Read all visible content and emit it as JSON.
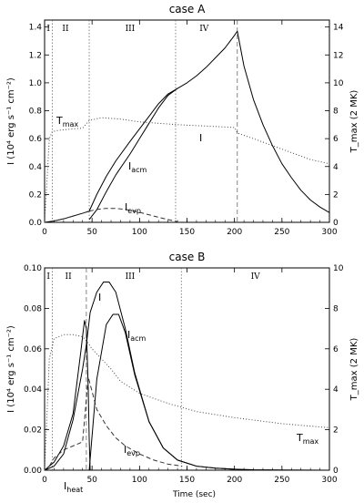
{
  "chart_data": [
    {
      "type": "line",
      "title": "case A",
      "xlabel": "",
      "ylabel": "I (10⁴ erg s⁻¹ cm⁻²)",
      "y2label": "T_max (2 MK)",
      "xlim": [
        0,
        300
      ],
      "ylim": [
        0,
        1.45
      ],
      "y2lim": [
        0,
        14.5
      ],
      "xticks": [
        0,
        50,
        100,
        150,
        200,
        250,
        300
      ],
      "yticks": [
        0.0,
        0.2,
        0.4,
        0.6,
        0.8,
        1.0,
        1.2,
        1.4
      ],
      "y2ticks": [
        0,
        2,
        4,
        6,
        8,
        10,
        12,
        14
      ],
      "grid": false,
      "phases": [
        {
          "label": "I",
          "x": 4
        },
        {
          "label": "II",
          "x": 22
        },
        {
          "label": "III",
          "x": 90
        },
        {
          "label": "IV",
          "x": 168
        }
      ],
      "phase_boundaries": [
        8,
        47,
        138,
        203
      ],
      "series": [
        {
          "name": "I",
          "style": "solid",
          "axis": "left",
          "x": [
            0,
            10,
            20,
            30,
            40,
            47,
            55,
            65,
            75,
            90,
            100,
            110,
            120,
            130,
            140,
            150,
            160,
            170,
            180,
            190,
            200,
            203,
            210,
            220,
            230,
            240,
            250,
            260,
            270,
            280,
            290,
            300
          ],
          "y": [
            0,
            0.01,
            0.025,
            0.045,
            0.065,
            0.08,
            0.2,
            0.33,
            0.44,
            0.58,
            0.67,
            0.76,
            0.85,
            0.92,
            0.96,
            1.0,
            1.05,
            1.11,
            1.18,
            1.25,
            1.34,
            1.37,
            1.12,
            0.88,
            0.7,
            0.55,
            0.42,
            0.32,
            0.23,
            0.16,
            0.11,
            0.07
          ]
        },
        {
          "name": "I_acm",
          "style": "solid",
          "axis": "left",
          "x": [
            47,
            55,
            65,
            75,
            90,
            100,
            110,
            120,
            130,
            140
          ],
          "y": [
            0.02,
            0.09,
            0.22,
            0.34,
            0.49,
            0.6,
            0.71,
            0.82,
            0.91,
            0.96
          ]
        },
        {
          "name": "I_evp",
          "style": "dashed",
          "axis": "left",
          "x": [
            10,
            20,
            30,
            40,
            47,
            55,
            65,
            75,
            85,
            95,
            105,
            115,
            125,
            135,
            140
          ],
          "y": [
            0.01,
            0.025,
            0.045,
            0.065,
            0.08,
            0.092,
            0.1,
            0.1,
            0.093,
            0.08,
            0.063,
            0.045,
            0.028,
            0.012,
            0.005
          ]
        },
        {
          "name": "T_max",
          "style": "dotted",
          "axis": "right",
          "x": [
            0,
            5,
            8,
            15,
            30,
            40,
            47,
            60,
            80,
            100,
            140,
            170,
            200,
            203,
            220,
            240,
            260,
            280,
            300
          ],
          "y": [
            0,
            6.0,
            6.5,
            6.6,
            6.7,
            6.75,
            7.3,
            7.5,
            7.4,
            7.2,
            7.0,
            6.9,
            6.8,
            6.4,
            6.0,
            5.5,
            5.0,
            4.5,
            4.2
          ]
        }
      ],
      "series_labels": [
        {
          "series": "T_max",
          "text": "T",
          "sub": "max"
        },
        {
          "series": "I_acm",
          "text": "I",
          "sub": "acm"
        },
        {
          "series": "I_evp",
          "text": "I",
          "sub": "evp"
        },
        {
          "series": "I",
          "text": "I",
          "sub": ""
        }
      ]
    },
    {
      "type": "line",
      "title": "case B",
      "xlabel": "Time (sec)",
      "ylabel": "I (10⁴ erg s⁻¹ cm⁻²)",
      "y2label": "T_max (2 MK)",
      "xlim": [
        0,
        300
      ],
      "ylim": [
        0,
        0.1
      ],
      "y2lim": [
        0,
        10
      ],
      "xticks": [
        0,
        50,
        100,
        150,
        200,
        250,
        300
      ],
      "yticks": [
        0.0,
        0.02,
        0.04,
        0.06,
        0.08,
        0.1
      ],
      "y2ticks": [
        0,
        2,
        4,
        6,
        8,
        10
      ],
      "grid": false,
      "phases": [
        {
          "label": "I",
          "x": 4
        },
        {
          "label": "II",
          "x": 25
        },
        {
          "label": "III",
          "x": 90
        },
        {
          "label": "IV",
          "x": 222
        }
      ],
      "phase_boundaries": [
        8,
        44,
        144
      ],
      "series": [
        {
          "name": "I",
          "style": "solid",
          "axis": "left",
          "x": [
            0,
            10,
            20,
            30,
            40,
            44,
            48,
            55,
            62,
            68,
            75,
            85,
            95,
            110,
            125,
            140,
            160,
            180,
            200,
            220,
            250,
            300
          ],
          "y": [
            0,
            0.002,
            0.008,
            0.025,
            0.05,
            0.062,
            0.078,
            0.088,
            0.093,
            0.093,
            0.088,
            0.07,
            0.048,
            0.024,
            0.011,
            0.005,
            0.002,
            0.001,
            0.0005,
            0.0002,
            0.0001,
            0.0
          ]
        },
        {
          "name": "I_heat",
          "style": "solid",
          "axis": "left",
          "x": [
            0,
            10,
            20,
            30,
            38,
            42,
            44,
            46,
            47,
            48
          ],
          "y": [
            0,
            0.004,
            0.012,
            0.028,
            0.058,
            0.074,
            0.07,
            0.04,
            0.015,
            0.0
          ]
        },
        {
          "name": "I_acm",
          "style": "solid",
          "axis": "left",
          "x": [
            47,
            55,
            65,
            72,
            78,
            85,
            95,
            110,
            125,
            140,
            160,
            180,
            200
          ],
          "y": [
            0.0,
            0.045,
            0.072,
            0.077,
            0.077,
            0.068,
            0.047,
            0.024,
            0.011,
            0.005,
            0.002,
            0.001,
            0.0005
          ]
        },
        {
          "name": "I_evp",
          "style": "dashed",
          "axis": "left",
          "x": [
            5,
            10,
            20,
            30,
            40,
            46,
            55,
            65,
            75,
            85,
            100,
            115,
            130,
            145
          ],
          "y": [
            0.002,
            0.006,
            0.01,
            0.012,
            0.014,
            0.046,
            0.03,
            0.022,
            0.016,
            0.012,
            0.008,
            0.005,
            0.003,
            0.002
          ]
        },
        {
          "name": "T_max",
          "style": "dotted",
          "axis": "right",
          "x": [
            0,
            5,
            10,
            20,
            30,
            40,
            44,
            50,
            60,
            70,
            80,
            100,
            130,
            160,
            200,
            250,
            300
          ],
          "y": [
            0,
            5.5,
            6.5,
            6.7,
            6.7,
            6.6,
            6.4,
            6.0,
            5.5,
            5.0,
            4.4,
            3.8,
            3.3,
            2.9,
            2.6,
            2.3,
            2.1
          ]
        }
      ],
      "series_labels": [
        {
          "series": "I",
          "text": "I",
          "sub": ""
        },
        {
          "series": "I_acm",
          "text": "I",
          "sub": "acm"
        },
        {
          "series": "T_max",
          "text": "T",
          "sub": "max"
        },
        {
          "series": "I_evp",
          "text": "I",
          "sub": "evp"
        },
        {
          "series": "I_heat",
          "text": "I",
          "sub": "heat"
        }
      ]
    }
  ]
}
